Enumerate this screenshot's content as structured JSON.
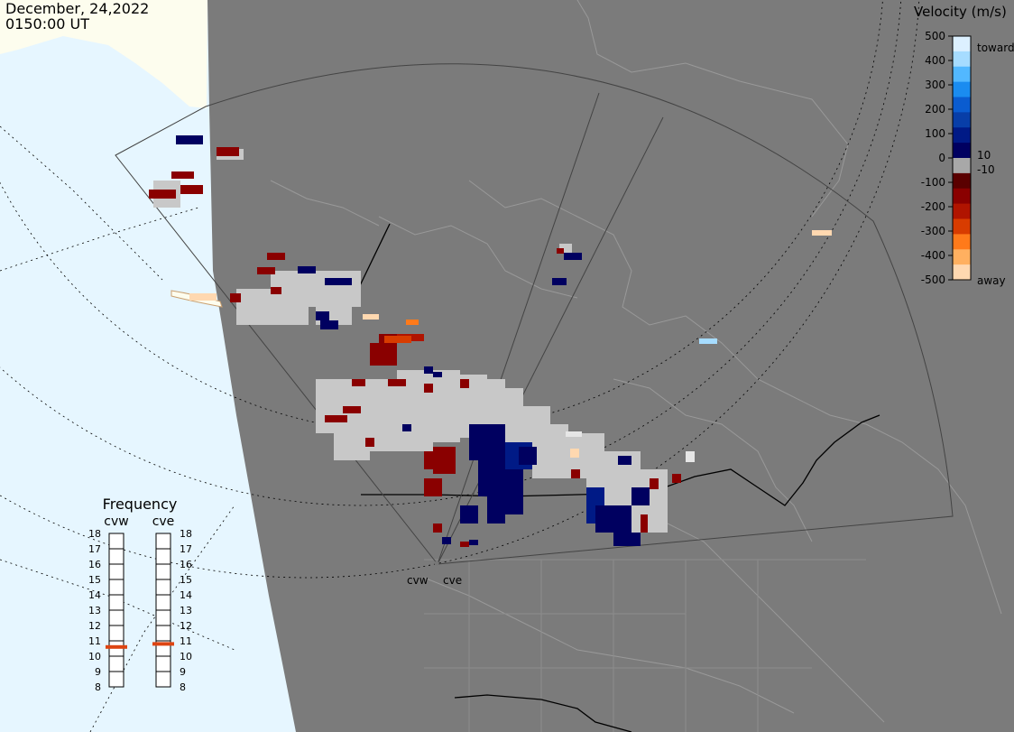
{
  "header": {
    "date": "December, 24,2022",
    "time": "0150:00 UT"
  },
  "colorbar": {
    "title": "Velocity (m/s)",
    "ticks": [
      "500",
      "400",
      "300",
      "200",
      "100",
      "0",
      "-100",
      "-200",
      "-300",
      "-400",
      "-500"
    ],
    "toward_label": "toward",
    "away_label": "away",
    "small_pos_label": "10",
    "small_neg_label": "-10",
    "colors": [
      "#dcf0ff",
      "#a6dcff",
      "#52b8ff",
      "#1a8cf0",
      "#0a5cd0",
      "#083ea8",
      "#001a86",
      "#000060",
      "#a8a8a8",
      "#5a0000",
      "#8a0000",
      "#b01400",
      "#d83c00",
      "#ff7a1a",
      "#ffb060",
      "#ffd8b0"
    ]
  },
  "frequency_panel": {
    "title": "Frequency",
    "radar_left": "cvw",
    "radar_right": "cve",
    "scale": [
      "18",
      "17",
      "16",
      "15",
      "14",
      "13",
      "12",
      "11",
      "10",
      "9",
      "8"
    ],
    "cvw_mhz": 10.6,
    "cve_mhz": 10.8,
    "marker_color": "#dd4411"
  },
  "radar_labels": {
    "cvw": "cvw",
    "cve": "cve"
  },
  "map_colors": {
    "land": "#7b7b7b",
    "ocean": "#e6f6ff",
    "glacier": "#fdfdee",
    "coast": "#999999",
    "border": "#000000",
    "fov": "#444444",
    "ground_scatter": "#c8c8c8"
  }
}
